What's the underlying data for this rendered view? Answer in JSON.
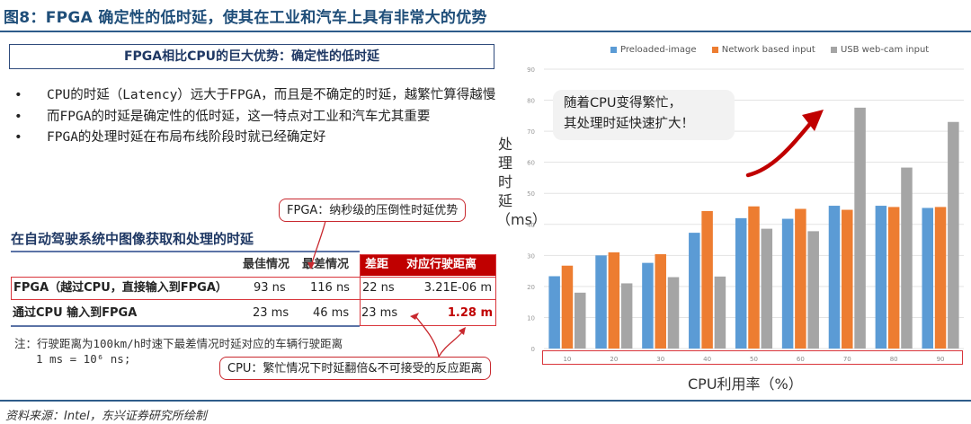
{
  "figure_title": "图8：FPGA 确定性的低时延，使其在工业和汽车上具有非常大的优势",
  "left_panel": {
    "box_title": "FPGA相比CPU的巨大优势：确定性的低时延",
    "bullets": [
      {
        "marker": "•",
        "text": "CPU的时延（Latency）远大于FPGA，而且是不确定的时延，越繁忙算得越慢"
      },
      {
        "marker": "•",
        "text": "而FPGA的时延是确定性的低时延，这一特点对工业和汽车尤其重要"
      },
      {
        "marker": "•",
        "text": "FPGA的处理时延在布局布线阶段时就已经确定好"
      }
    ],
    "table_title": "在自动驾驶系统中图像获取和处理的时延",
    "table": {
      "headers": [
        "",
        "最佳情况",
        "最差情况",
        "差距",
        "对应行驶距离"
      ],
      "rows": [
        [
          "FPGA（越过CPU，直接输入到FPGA）",
          "93 ns",
          "116 ns",
          "22 ns",
          "3.21E-06 m"
        ],
        [
          "通过CPU 输入到FPGA",
          "23 ms",
          "46 ms",
          "23 ms",
          "1.28 m"
        ]
      ]
    },
    "note_line1": "注：行驶距离为100km/h时速下最差情况时延对应的车辆行驶距离",
    "note_line2": "1 ms = 10⁶ ns;",
    "callout_fpga": "FPGA：纳秒级的压倒性时延优势",
    "callout_cpu": "CPU：繁忙情况下时延翻倍&不可接受的反应距离"
  },
  "source": "资料来源：Intel，东兴证券研究所绘制",
  "colors": {
    "title_blue": "#1f4e79",
    "accent_red": "#c00000",
    "preloaded": "#5b9bd5",
    "network": "#ed7d31",
    "usb": "#a5a5a5"
  },
  "chart_data": {
    "type": "bar",
    "title": "",
    "xlabel": "CPU利用率（%）",
    "ylabel": "处理时延（ms）",
    "ylim": [
      0,
      90
    ],
    "yticks": [
      0,
      10,
      20,
      30,
      40,
      50,
      60,
      70,
      80,
      90
    ],
    "grid": true,
    "legend_position": "top",
    "categories": [
      "10",
      "20",
      "30",
      "40",
      "50",
      "60",
      "70",
      "80",
      "90"
    ],
    "series": [
      {
        "name": "Preloaded-image",
        "color": "#5b9bd5",
        "values": [
          23.3,
          30,
          27.6,
          37.3,
          42,
          41.8,
          46,
          46,
          45.3
        ]
      },
      {
        "name": "Network based input",
        "color": "#ed7d31",
        "values": [
          26.7,
          31,
          30.4,
          44.3,
          45.8,
          45,
          44.7,
          45.6,
          45.6
        ]
      },
      {
        "name": "USB web-cam input",
        "color": "#a5a5a5",
        "values": [
          18,
          21,
          23,
          23.2,
          38.6,
          37.8,
          77.6,
          58.3,
          73
        ]
      }
    ],
    "annotation": "随着CPU变得繁忙，其处理时延快速扩大！",
    "annotation_line1": "随着CPU变得繁忙，",
    "annotation_line2": "其处理时延快速扩大！"
  }
}
